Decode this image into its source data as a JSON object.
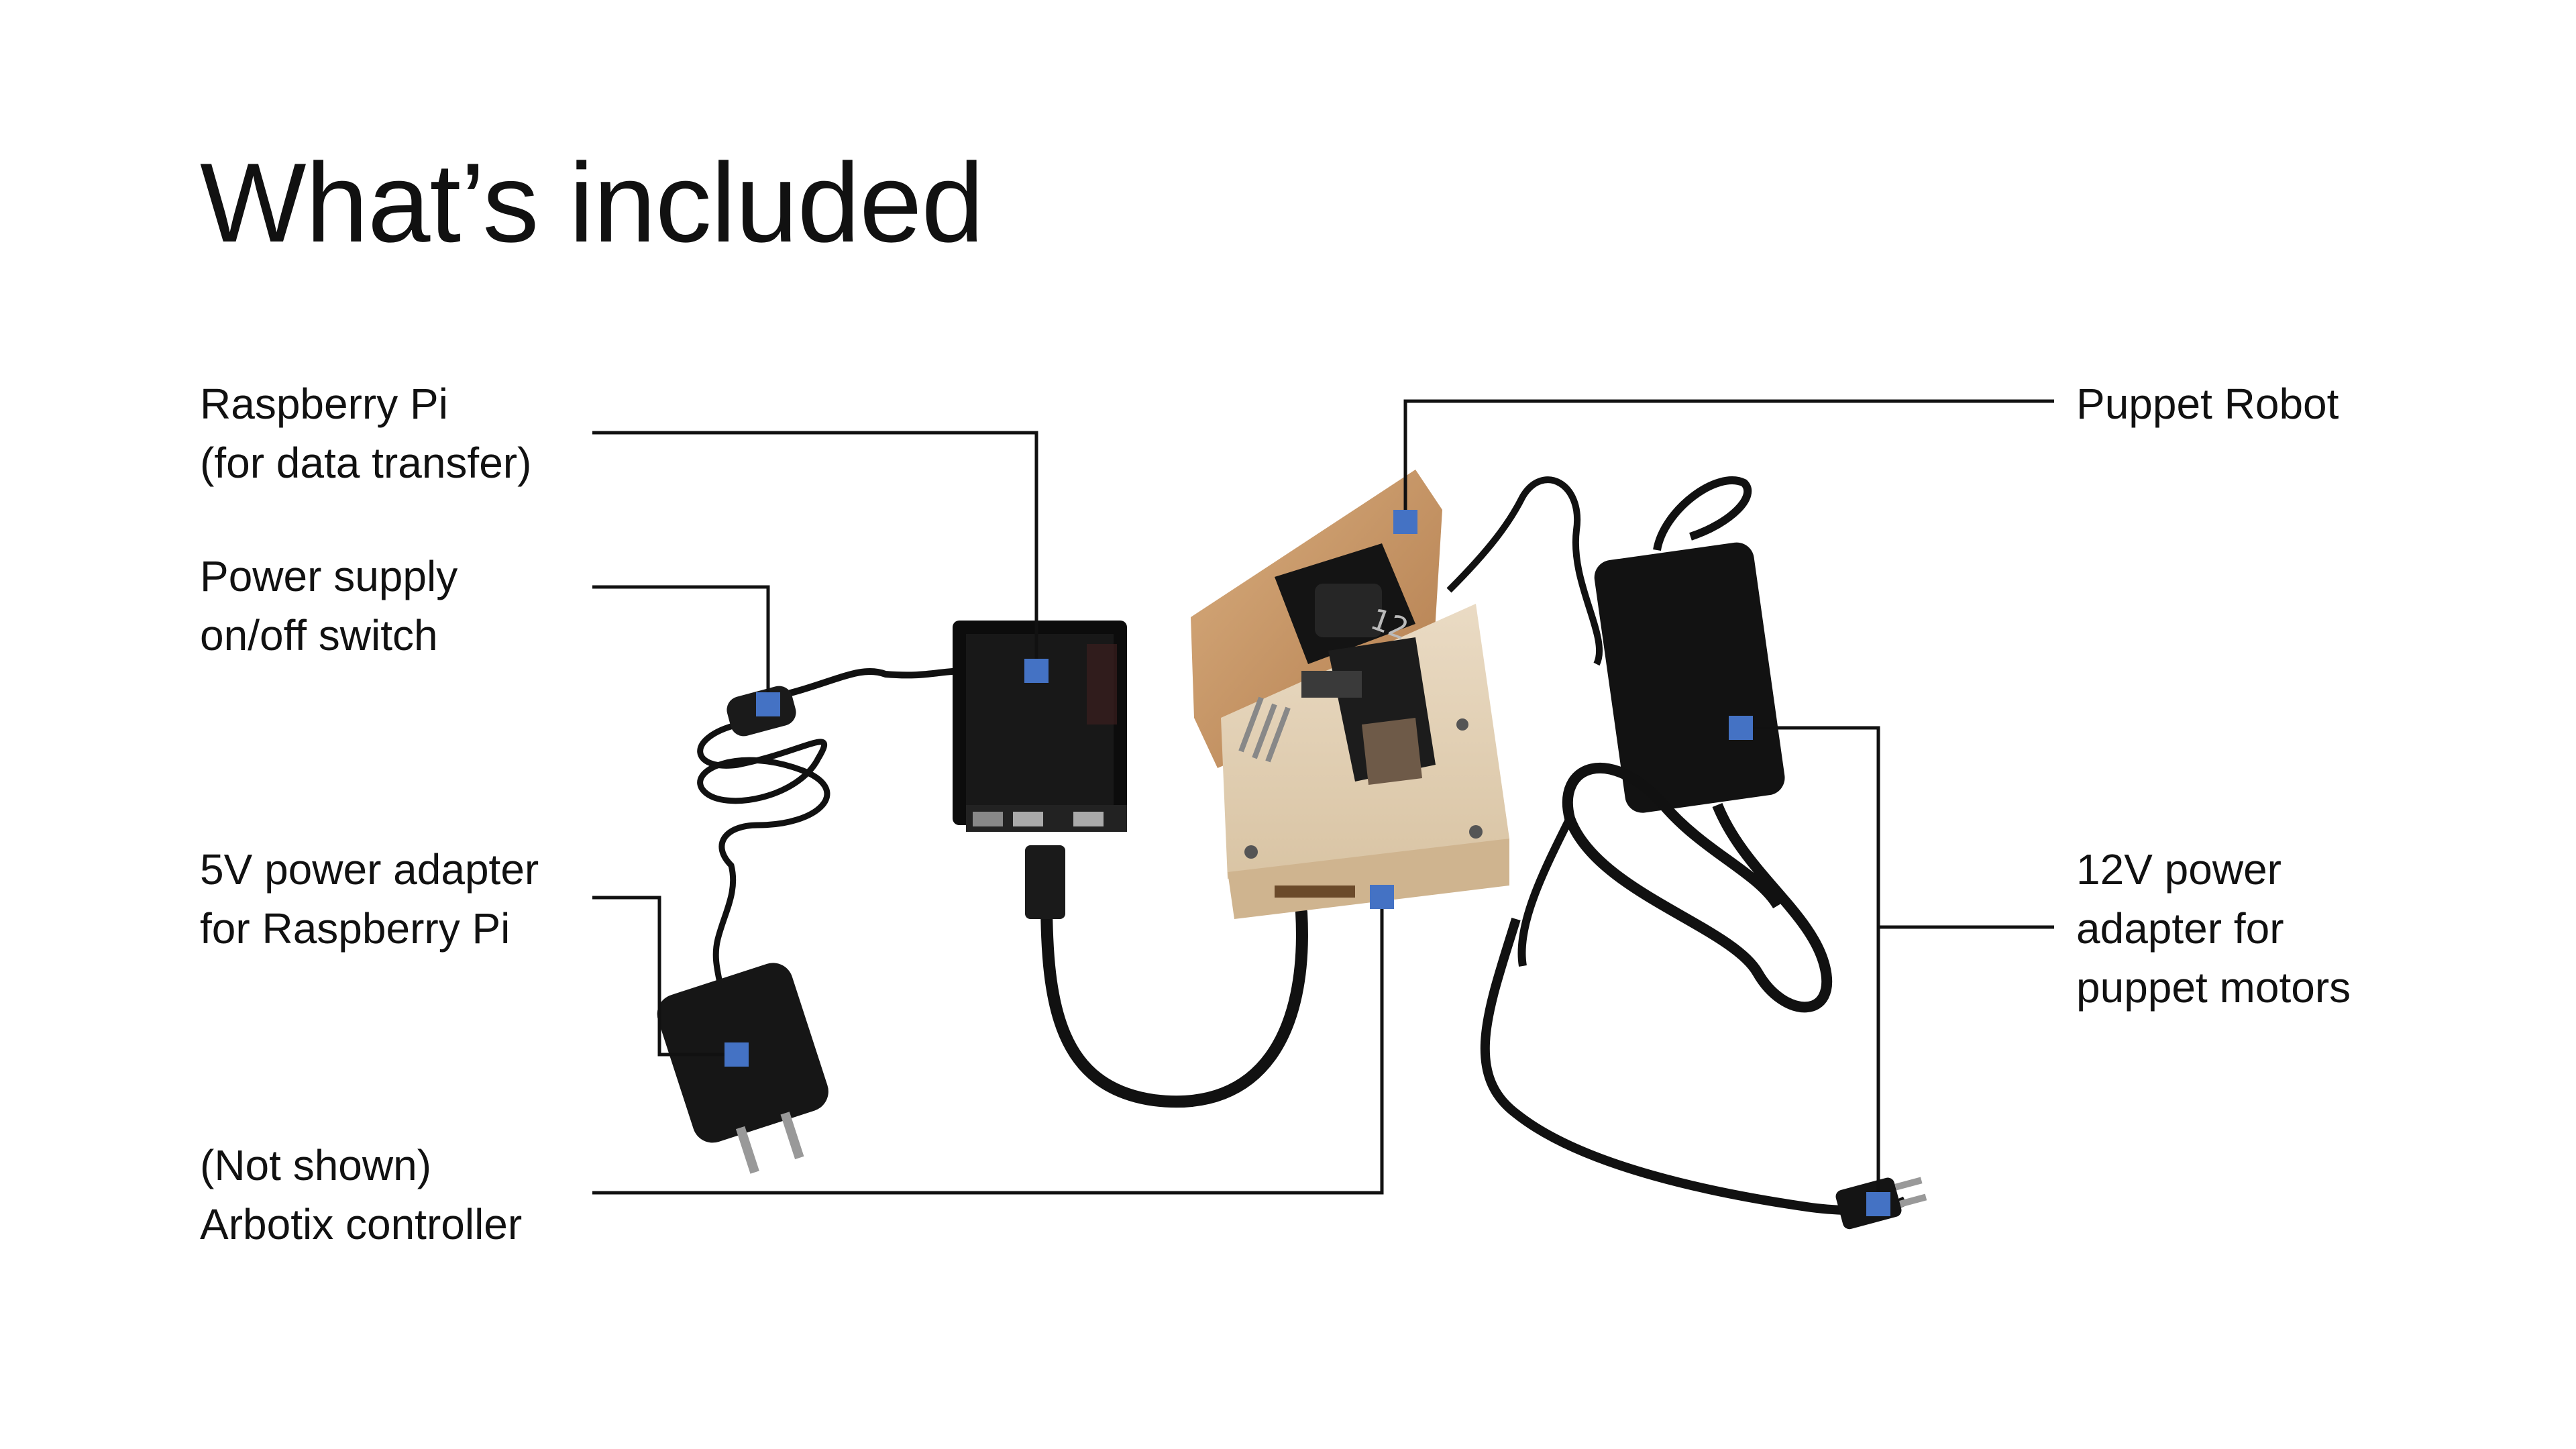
{
  "slide": {
    "title": "What’s included"
  },
  "labels": {
    "raspberry_pi": {
      "line1": "Raspberry Pi",
      "line2": "(for data transfer)"
    },
    "power_switch": {
      "line1": "Power supply",
      "line2": "on/off switch"
    },
    "adapter_5v": {
      "line1": "5V power adapter",
      "line2": "for Raspberry Pi"
    },
    "arbotix": {
      "line1": "(Not shown)",
      "line2": "Arbotix controller"
    },
    "puppet_robot": {
      "line1": "Puppet Robot"
    },
    "adapter_12v": {
      "line1": "12V power",
      "line2": "adapter for",
      "line3": "puppet motors"
    }
  },
  "colors": {
    "marker": "#4472c4",
    "leader_line": "#111111",
    "wood": "#c89868",
    "device": "#161616"
  },
  "robot": {
    "servo_number": "12"
  }
}
